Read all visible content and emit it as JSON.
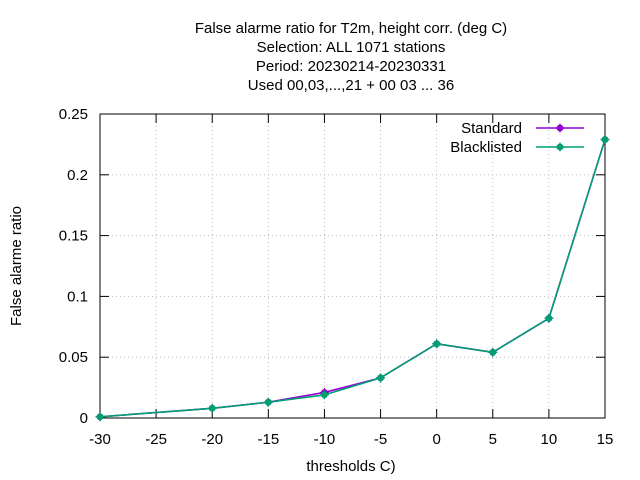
{
  "chart_data": {
    "type": "line",
    "title_lines": [
      "False alarme ratio  for T2m, height corr. (deg C)",
      "Selection: ALL   1071 stations",
      "Period: 20230214-20230331",
      "Used  00,03,...,21  + 00 03 ... 36"
    ],
    "xlabel": "thresholds C)",
    "ylabel": "False alarme ratio",
    "xlim": [
      -30,
      15
    ],
    "ylim": [
      0,
      0.25
    ],
    "x_ticks": [
      -30,
      -25,
      -20,
      -15,
      -10,
      -5,
      0,
      5,
      10,
      15
    ],
    "x_tick_labels": [
      "-30",
      "-25",
      "-20",
      "-15",
      "-10",
      "-5",
      "0",
      "5",
      "10",
      "15"
    ],
    "y_ticks": [
      0,
      0.05,
      0.1,
      0.15,
      0.2,
      0.25
    ],
    "y_tick_labels": [
      "0",
      "0.05",
      "0.1",
      "0.15",
      "0.2",
      "0.25"
    ],
    "grid": true,
    "legend_position": "top-right",
    "series": [
      {
        "name": "Standard",
        "color": "#9400d3",
        "x": [
          -30,
          -20,
          -15,
          -10,
          -5,
          0,
          5,
          10,
          15
        ],
        "y": [
          0.001,
          0.008,
          0.013,
          0.021,
          0.033,
          0.061,
          0.054,
          0.082,
          0.229
        ]
      },
      {
        "name": "Blacklisted",
        "color": "#009e73",
        "x": [
          -30,
          -20,
          -15,
          -10,
          -5,
          0,
          5,
          10,
          15
        ],
        "y": [
          0.001,
          0.008,
          0.013,
          0.019,
          0.033,
          0.061,
          0.054,
          0.082,
          0.229
        ]
      }
    ]
  }
}
